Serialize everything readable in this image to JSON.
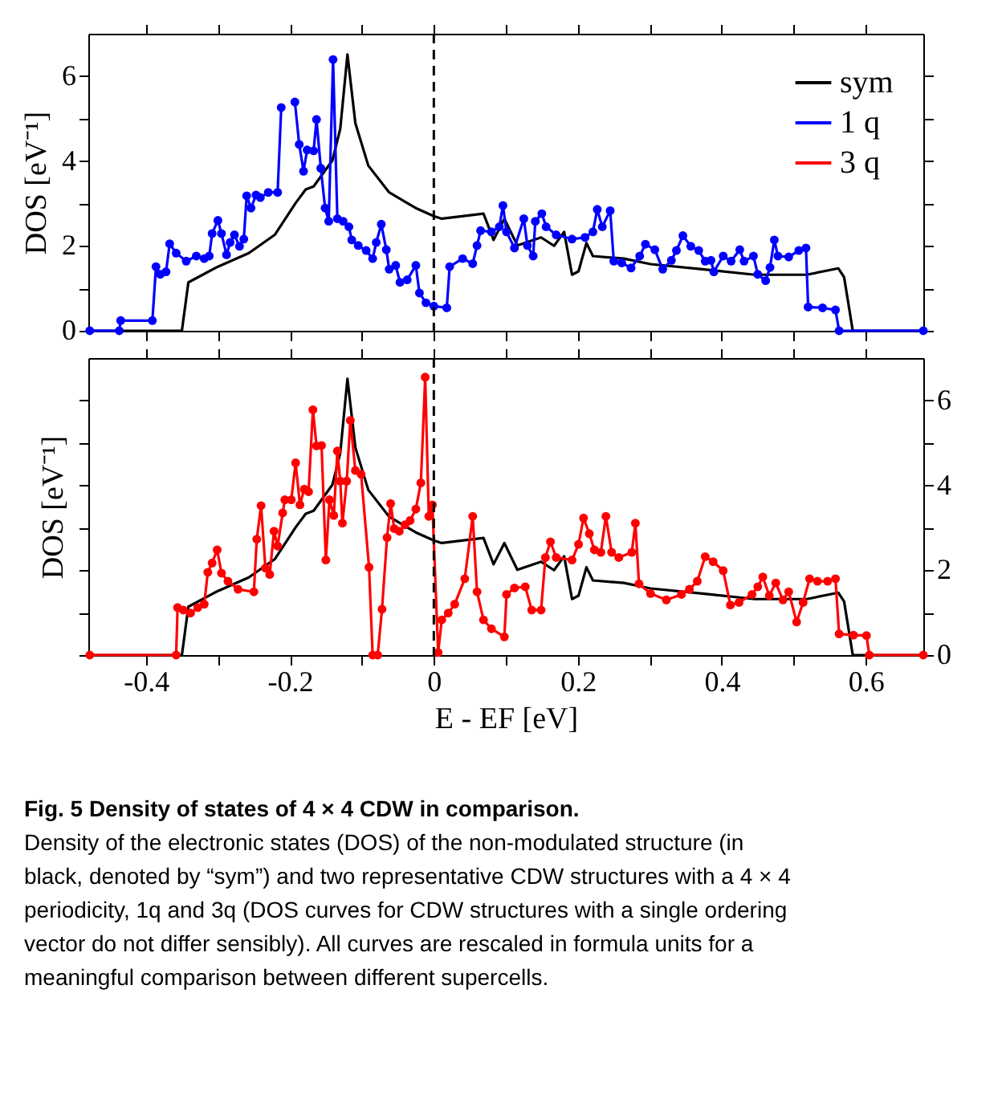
{
  "chart_data": [
    {
      "type": "line",
      "ylabel": "DOS [eV⁻¹]",
      "xlim": [
        -0.48,
        0.68
      ],
      "xticks": [
        -0.4,
        {
          "value": -0.3,
          "label": null
        },
        -0.2,
        {
          "value": -0.1,
          "label": null
        },
        0,
        {
          "value": 0.1,
          "label": null
        },
        0.2,
        {
          "value": 0.3,
          "label": null
        },
        0.4,
        {
          "value": 0.5,
          "label": null
        },
        0.6
      ],
      "ylim": [
        0,
        7
      ],
      "yticks": [
        0,
        {
          "value": 1,
          "label": null
        },
        2,
        {
          "value": 3,
          "label": null
        },
        4,
        {
          "value": 5,
          "label": null
        },
        6
      ],
      "tick_labels": "y",
      "grid": false,
      "legend": "top right",
      "ref_lines": [
        {
          "axis": "x",
          "value": 0,
          "label": null,
          "color": "#000000",
          "line_style": "dashed"
        }
      ],
      "series": [
        {
          "name": "sym",
          "color": "#000000",
          "marker": "none",
          "x": [
            -0.48,
            -0.35,
            -0.341,
            -0.3,
            -0.257,
            -0.221,
            -0.192,
            -0.178,
            -0.167,
            -0.141,
            -0.13,
            -0.12,
            -0.109,
            -0.091,
            -0.062,
            -0.025,
            0.0,
            0.011,
            0.069,
            0.083,
            0.098,
            0.116,
            0.149,
            0.167,
            0.181,
            0.192,
            0.201,
            0.212,
            0.221,
            0.264,
            0.301,
            0.373,
            0.446,
            0.518,
            0.562,
            0.57,
            0.582,
            0.68
          ],
          "values": [
            0,
            0,
            1.14,
            1.51,
            1.83,
            2.26,
            3.01,
            3.33,
            3.4,
            4.01,
            4.76,
            6.51,
            4.89,
            3.89,
            3.26,
            2.89,
            2.7,
            2.64,
            2.76,
            2.14,
            2.64,
            2.01,
            2.2,
            2.0,
            2.33,
            1.32,
            1.4,
            2.07,
            1.76,
            1.7,
            1.57,
            1.45,
            1.32,
            1.32,
            1.47,
            1.26,
            0,
            0
          ]
        },
        {
          "name": "1 q",
          "color": "#0000ff",
          "marker": "circle",
          "x": [
            -0.478,
            -0.437,
            -0.435,
            -0.391,
            -0.386,
            -0.38,
            -0.372,
            -0.367,
            -0.358,
            -0.344,
            -0.33,
            -0.319,
            -0.312,
            -0.308,
            -0.3,
            -0.295,
            -0.288,
            -0.283,
            -0.277,
            -0.27,
            -0.264,
            -0.26,
            -0.254,
            -0.247,
            -0.241,
            -0.23,
            -0.217,
            -0.212,
            -0.204,
            -0.198,
            -0.193,
            -0.187,
            -0.181,
            -0.176,
            -0.167,
            -0.163,
            -0.157,
            -0.151,
            -0.146,
            -0.14,
            -0.134,
            -0.126,
            -0.118,
            -0.114,
            -0.105,
            -0.094,
            -0.085,
            -0.08,
            -0.073,
            -0.066,
            -0.062,
            -0.053,
            -0.047,
            -0.037,
            -0.025,
            -0.02,
            -0.011,
            0.0,
            0.018,
            0.022,
            0.04,
            0.054,
            0.06,
            0.065,
            0.08,
            0.091,
            0.096,
            0.101,
            0.112,
            0.125,
            0.13,
            0.138,
            0.141,
            0.15,
            0.156,
            0.17,
            0.192,
            0.21,
            0.221,
            0.227,
            0.234,
            0.245,
            0.25,
            0.261,
            0.274,
            0.286,
            0.294,
            0.307,
            0.318,
            0.33,
            0.337,
            0.346,
            0.357,
            0.368,
            0.377,
            0.385,
            0.389,
            0.402,
            0.413,
            0.425,
            0.431,
            0.444,
            0.45,
            0.461,
            0.467,
            0.473,
            0.478,
            0.493,
            0.507,
            0.517,
            0.52,
            0.54,
            0.558,
            0.563,
            0.68
          ],
          "values": [
            0,
            0,
            0.24,
            0.24,
            1.51,
            1.33,
            1.39,
            2.05,
            1.83,
            1.64,
            1.76,
            1.7,
            1.76,
            2.29,
            2.6,
            2.29,
            1.79,
            2.08,
            2.26,
            1.99,
            2.16,
            3.18,
            2.89,
            3.2,
            3.14,
            3.26,
            3.26,
            5.26,
            null,
            null,
            5.39,
            4.39,
            3.76,
            4.26,
            4.24,
            4.98,
            3.83,
            2.89,
            2.58,
            6.39,
            2.64,
            2.58,
            2.45,
            2.14,
            2.01,
            1.89,
            1.7,
            2.08,
            2.51,
            1.91,
            1.45,
            1.54,
            1.14,
            1.2,
            1.54,
            0.89,
            0.66,
            0.58,
            0.54,
            1.51,
            1.7,
            1.58,
            2.01,
            2.36,
            2.33,
            2.45,
            2.95,
            2.33,
            1.95,
            2.64,
            2.01,
            1.76,
            2.58,
            2.76,
            2.45,
            2.26,
            2.16,
            2.2,
            2.33,
            2.86,
            2.45,
            2.83,
            1.64,
            1.6,
            1.48,
            1.76,
            2.04,
            1.91,
            1.45,
            1.66,
            1.89,
            2.24,
            1.99,
            1.89,
            1.64,
            1.66,
            1.39,
            1.76,
            1.64,
            1.91,
            1.64,
            1.76,
            1.33,
            1.18,
            1.49,
            2.14,
            1.76,
            1.74,
            1.89,
            1.95,
            0.56,
            0.54,
            0.49,
            0,
            0
          ]
        }
      ]
    },
    {
      "type": "line",
      "ylabel": "DOS [eV⁻¹]",
      "xlabel": "E - EF [eV]",
      "xlim": [
        -0.48,
        0.68
      ],
      "xticks": [
        -0.4,
        {
          "value": -0.3,
          "label": null
        },
        -0.2,
        {
          "value": -0.1,
          "label": null
        },
        0,
        {
          "value": 0.1,
          "label": null
        },
        0.2,
        {
          "value": 0.3,
          "label": null
        },
        0.4,
        {
          "value": 0.5,
          "label": null
        },
        0.6
      ],
      "y2lim": [
        0,
        7
      ],
      "y2ticks": [
        0,
        {
          "value": 1,
          "label": null
        },
        2,
        {
          "value": 3,
          "label": null
        },
        4,
        {
          "value": 5,
          "label": null
        },
        6
      ],
      "grid": false,
      "ref_lines": [
        {
          "axis": "x",
          "value": 0,
          "label": null,
          "color": "#000000",
          "line_style": "dashed"
        }
      ],
      "annotations": [
        "Fig. 5 Density of states of 4 × 4 CDW in comparison.",
        "Density of the electronic states (DOS) of the non-modulated structure (in black, denoted by “sym”) and two representative CDW structures with a 4 × 4 periodicity, 1q and 3q (DOS curves for CDW structures with a single ordering vector do not differ sensibly). All curves are rescaled in formula units for a meaningful comparison between different supercells."
      ],
      "series": [
        {
          "color": "#000000",
          "marker": "none",
          "axis": "y2",
          "x": [
            -0.48,
            -0.35,
            -0.341,
            -0.3,
            -0.257,
            -0.221,
            -0.192,
            -0.178,
            -0.167,
            -0.141,
            -0.13,
            -0.12,
            -0.109,
            -0.091,
            -0.062,
            -0.025,
            0.0,
            0.011,
            0.069,
            0.083,
            0.098,
            0.116,
            0.149,
            0.167,
            0.181,
            0.192,
            0.201,
            0.212,
            0.221,
            0.264,
            0.301,
            0.373,
            0.446,
            0.518,
            0.562,
            0.57,
            0.582,
            0.68
          ],
          "values": [
            0,
            0,
            1.14,
            1.51,
            1.83,
            2.26,
            3.01,
            3.33,
            3.4,
            4.01,
            4.76,
            6.51,
            4.89,
            3.89,
            3.26,
            2.89,
            2.7,
            2.64,
            2.76,
            2.14,
            2.64,
            2.01,
            2.2,
            2.0,
            2.33,
            1.32,
            1.4,
            2.07,
            1.76,
            1.7,
            1.57,
            1.45,
            1.32,
            1.32,
            1.47,
            1.26,
            0,
            0
          ]
        },
        {
          "name": "3 q",
          "color": "#ff0000",
          "marker": "circle",
          "axis": "y2",
          "x": [
            -0.478,
            -0.358,
            -0.356,
            -0.348,
            -0.338,
            -0.328,
            -0.319,
            -0.314,
            -0.308,
            -0.301,
            -0.295,
            -0.286,
            -0.272,
            -0.25,
            -0.246,
            -0.24,
            -0.234,
            -0.228,
            -0.222,
            -0.217,
            -0.21,
            -0.207,
            -0.198,
            -0.192,
            -0.186,
            -0.18,
            -0.174,
            -0.168,
            -0.163,
            -0.156,
            -0.15,
            -0.145,
            -0.139,
            -0.134,
            -0.13,
            -0.127,
            -0.121,
            -0.116,
            -0.109,
            -0.101,
            -0.09,
            -0.085,
            -0.078,
            -0.072,
            -0.065,
            -0.06,
            -0.055,
            -0.048,
            -0.04,
            -0.033,
            -0.025,
            -0.018,
            -0.012,
            -0.007,
            -0.002,
            0.006,
            0.011,
            0.02,
            0.029,
            0.043,
            0.054,
            0.06,
            0.069,
            0.08,
            0.098,
            0.101,
            0.112,
            0.127,
            0.136,
            0.149,
            0.155,
            0.162,
            0.17,
            0.192,
            0.201,
            0.208,
            0.216,
            0.223,
            0.232,
            0.239,
            0.247,
            0.257,
            0.275,
            0.28,
            0.285,
            0.301,
            0.323,
            0.344,
            0.355,
            0.366,
            0.377,
            0.388,
            0.402,
            0.412,
            0.424,
            0.442,
            0.45,
            0.457,
            0.466,
            0.475,
            0.485,
            0.493,
            0.504,
            0.513,
            0.522,
            0.533,
            0.547,
            0.558,
            0.563,
            0.583,
            0.601,
            0.605,
            0.68
          ],
          "values": [
            0,
            0,
            1.12,
            1.06,
            0.99,
            1.12,
            1.2,
            1.95,
            2.17,
            2.48,
            1.93,
            1.74,
            1.55,
            1.49,
            2.73,
            3.52,
            2.05,
            1.9,
            2.92,
            2.57,
            3.35,
            3.66,
            3.66,
            4.53,
            3.54,
            3.91,
            3.85,
            5.78,
            4.93,
            4.94,
            2.24,
            3.66,
            3.29,
            4.81,
            4.1,
            3.11,
            4.1,
            5.53,
            4.35,
            4.26,
            2.07,
            0,
            0,
            1.08,
            2.77,
            3.57,
            2.98,
            2.92,
            3.07,
            3.17,
            3.44,
            4.06,
            6.55,
            3.27,
            3.54,
            0.06,
            0.83,
            0.99,
            1.2,
            1.8,
            3.27,
            1.49,
            0.83,
            0.62,
            0.43,
            1.43,
            1.58,
            1.61,
            1.06,
            1.06,
            2.3,
            2.67,
            2.3,
            2.24,
            2.61,
            3.23,
            2.86,
            2.48,
            2.42,
            3.27,
            2.42,
            2.3,
            2.42,
            3.11,
            1.68,
            1.45,
            1.3,
            1.43,
            1.55,
            1.74,
            2.32,
            2.2,
            1.99,
            1.18,
            1.24,
            1.43,
            1.61,
            1.84,
            1.4,
            1.7,
            1.3,
            1.49,
            0.78,
            1.24,
            1.8,
            1.74,
            1.74,
            1.8,
            0.5,
            0.47,
            0.46,
            0,
            0
          ]
        }
      ]
    }
  ]
}
